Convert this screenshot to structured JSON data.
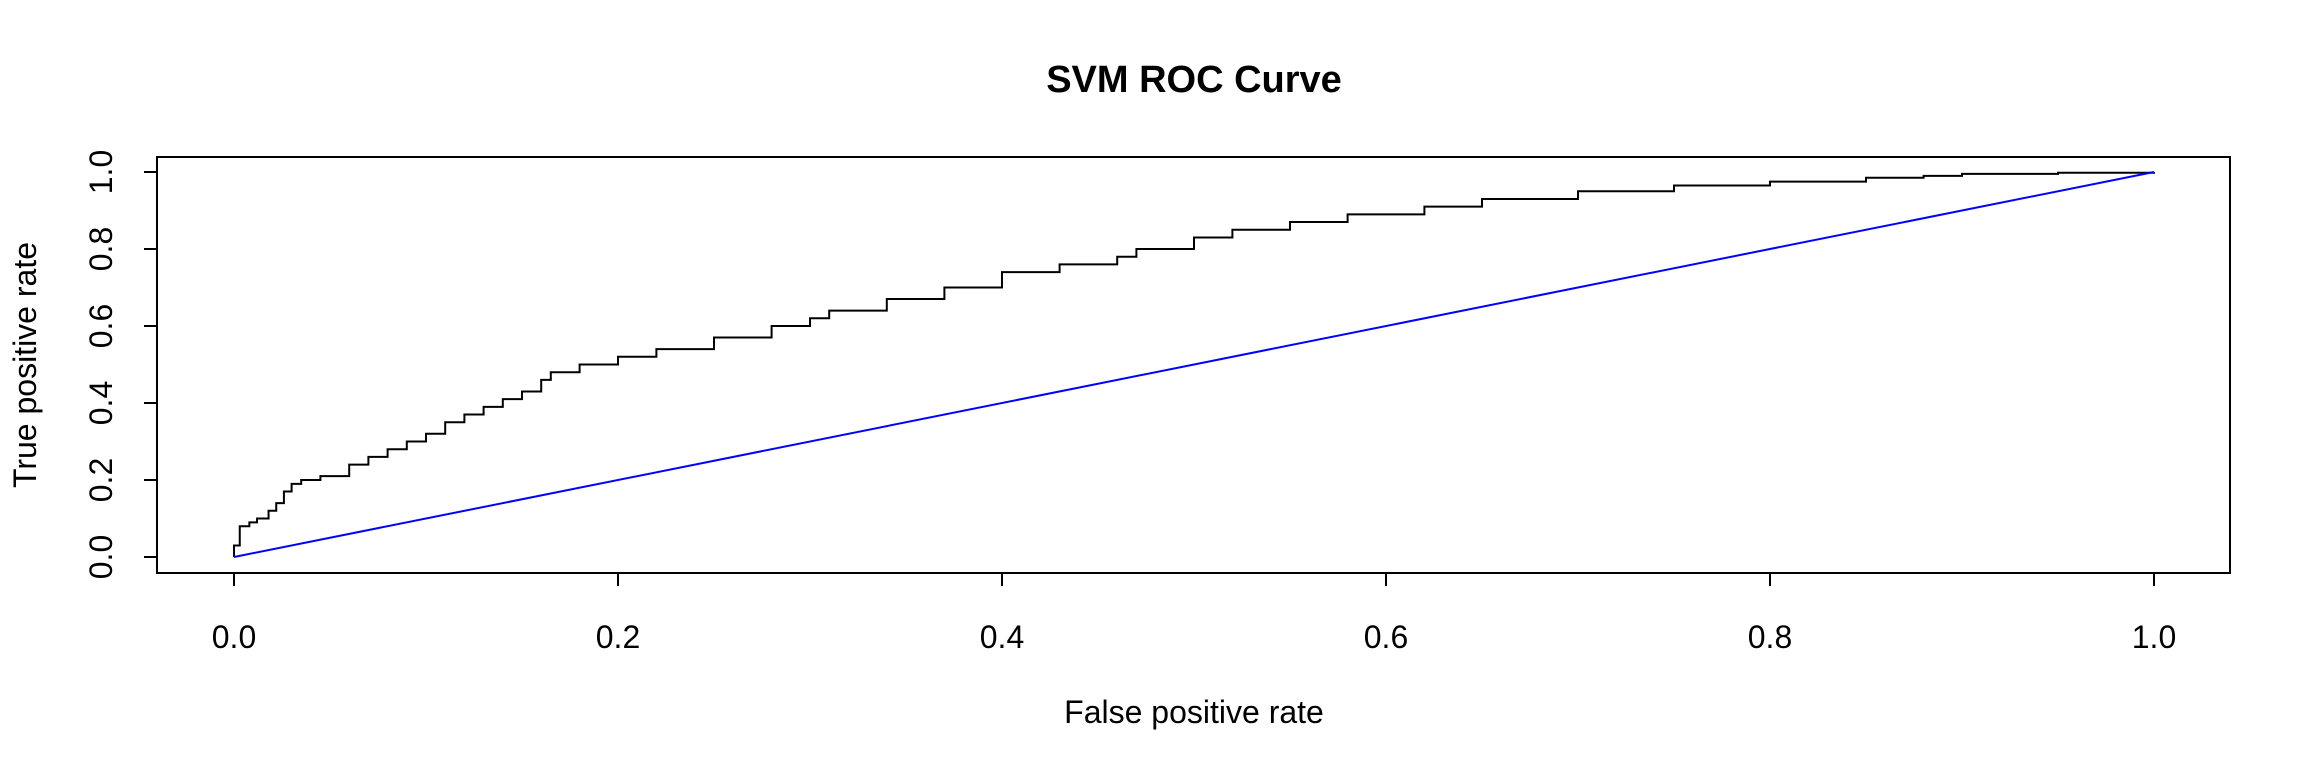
{
  "chart_data": {
    "type": "line",
    "title": "SVM ROC Curve",
    "xlabel": "False positive rate",
    "ylabel": "True positive rate",
    "xlim": [
      0.0,
      1.0
    ],
    "ylim": [
      0.0,
      1.0
    ],
    "x_ticks": [
      "0.0",
      "0.2",
      "0.4",
      "0.6",
      "0.8",
      "1.0"
    ],
    "y_ticks": [
      "0.0",
      "0.2",
      "0.4",
      "0.6",
      "0.8",
      "1.0"
    ],
    "grid": false,
    "series": [
      {
        "color": "#000000",
        "step": true,
        "x": [
          0.0,
          0.0,
          0.003,
          0.008,
          0.012,
          0.018,
          0.022,
          0.026,
          0.03,
          0.035,
          0.045,
          0.06,
          0.07,
          0.08,
          0.09,
          0.1,
          0.11,
          0.12,
          0.13,
          0.14,
          0.15,
          0.16,
          0.165,
          0.18,
          0.2,
          0.22,
          0.25,
          0.28,
          0.3,
          0.31,
          0.34,
          0.37,
          0.4,
          0.43,
          0.46,
          0.47,
          0.5,
          0.52,
          0.55,
          0.58,
          0.62,
          0.65,
          0.7,
          0.75,
          0.8,
          0.85,
          0.88,
          0.9,
          0.95,
          1.0
        ],
        "y": [
          0.0,
          0.03,
          0.08,
          0.09,
          0.1,
          0.12,
          0.14,
          0.17,
          0.19,
          0.2,
          0.21,
          0.24,
          0.26,
          0.28,
          0.3,
          0.32,
          0.35,
          0.37,
          0.39,
          0.41,
          0.43,
          0.46,
          0.48,
          0.5,
          0.52,
          0.54,
          0.57,
          0.6,
          0.62,
          0.64,
          0.67,
          0.7,
          0.74,
          0.76,
          0.78,
          0.8,
          0.83,
          0.85,
          0.87,
          0.89,
          0.91,
          0.93,
          0.95,
          0.965,
          0.975,
          0.985,
          0.99,
          0.995,
          0.998,
          1.0
        ]
      },
      {
        "color": "#0000ff",
        "step": false,
        "x": [
          0.0,
          1.0
        ],
        "y": [
          0.0,
          1.0
        ]
      }
    ]
  }
}
